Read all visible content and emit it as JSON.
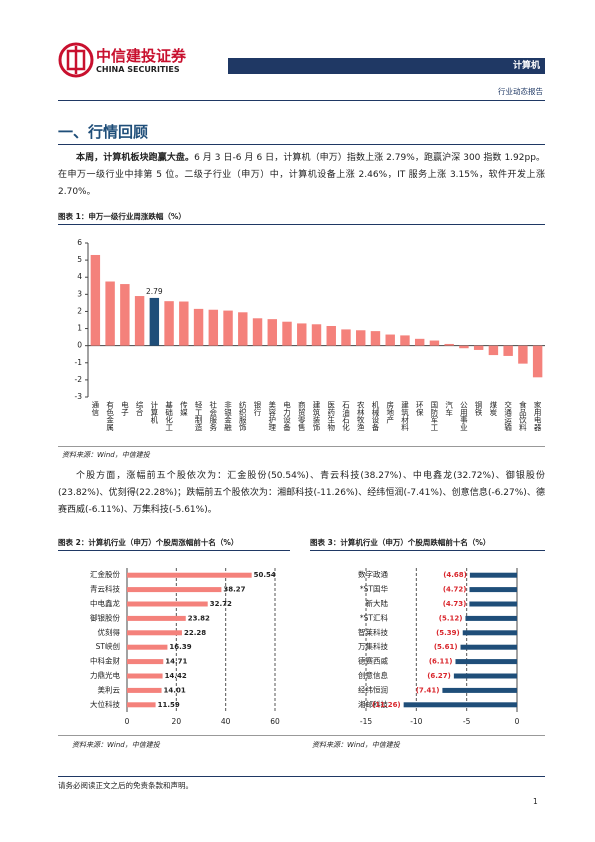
{
  "header": {
    "logo_cn": "中信建投证券",
    "logo_en": "CHINA SECURITIES",
    "sector": "计算机",
    "report_type": "行业动态报告"
  },
  "section_title": "一、行情回顾",
  "paragraphs": [
    {
      "lead": "本周，计算机板块跑赢大盘。",
      "text": "6 月 3 日-6 月 6 日，计算机（申万）指数上涨 2.79%，跑赢沪深 300 指数 1.92pp。在申万一级行业中排第 5 位。二级子行业（申万）中，计算机设备上涨 2.46%，IT 服务上涨 3.15%，软件开发上涨 2.70%。"
    },
    {
      "text": "个股方面，涨幅前五个股依次为：汇金股份(50.54%)、青云科技(38.27%)、中电鑫龙(32.72%)、御银股份(23.82%)、优刻得(22.28%)；跌幅前五个股依次为：湘邮科技(-11.26%)、经纬恒润(-7.41%)、创意信息(-6.27%)、德赛西威(-6.11%)、万集科技(-5.61%)。"
    }
  ],
  "chart_data": [
    {
      "type": "bar",
      "title": "图表 1：申万一级行业周涨跌幅（%）",
      "source": "资料来源：Wind，中信建投",
      "categories": [
        "通信",
        "有色金属",
        "电子",
        "综合",
        "计算机",
        "基础化工",
        "传媒",
        "轻工制造",
        "社会服务",
        "非银金融",
        "纺织服饰",
        "银行",
        "美容护理",
        "电力设备",
        "商贸零售",
        "建筑装饰",
        "医药生物",
        "石油石化",
        "农林牧渔",
        "机械设备",
        "房地产",
        "建筑材料",
        "环保",
        "国防军工",
        "汽车",
        "公用事业",
        "钢铁",
        "煤炭",
        "交通运输",
        "食品饮料",
        "家用电器"
      ],
      "values": [
        5.3,
        3.75,
        3.6,
        2.9,
        2.79,
        2.6,
        2.58,
        2.15,
        2.1,
        2.05,
        1.95,
        1.6,
        1.55,
        1.4,
        1.3,
        1.25,
        1.15,
        0.95,
        0.9,
        0.85,
        0.65,
        0.6,
        0.4,
        0.3,
        0.1,
        -0.15,
        -0.25,
        -0.55,
        -0.6,
        -1.05,
        -1.85
      ],
      "value_labels": [
        null,
        null,
        null,
        null,
        "2.79",
        null,
        null,
        null,
        null,
        null,
        null,
        null,
        null,
        null,
        null,
        null,
        null,
        null,
        null,
        null,
        null,
        null,
        null,
        null,
        null,
        null,
        null,
        null,
        null,
        null,
        null
      ],
      "colors": [
        "#f4817b",
        "#f4817b",
        "#f4817b",
        "#f4817b",
        "#1f4e79",
        "#f4817b",
        "#f4817b",
        "#f4817b",
        "#f4817b",
        "#f4817b",
        "#f4817b",
        "#f4817b",
        "#f4817b",
        "#f4817b",
        "#f4817b",
        "#f4817b",
        "#f4817b",
        "#f4817b",
        "#f4817b",
        "#f4817b",
        "#f4817b",
        "#f4817b",
        "#f4817b",
        "#f4817b",
        "#f4817b",
        "#f4817b",
        "#f4817b",
        "#f4817b",
        "#f4817b",
        "#f4817b",
        "#f4817b"
      ],
      "ylim": [
        -3,
        6
      ],
      "yticks": [
        -3,
        -2,
        -1,
        0,
        1,
        2,
        3,
        4,
        5,
        6
      ],
      "grid": false
    },
    {
      "type": "barh",
      "title": "图表 2：计算机行业（申万）个股周涨幅前十名（%）",
      "source": "资料来源：Wind，中信建投",
      "categories": [
        "汇金股份",
        "青云科技",
        "中电鑫龙",
        "御银股份",
        "优刻得",
        "ST峡创",
        "中科金财",
        "力鼎光电",
        "美利云",
        "大位科技"
      ],
      "values": [
        50.54,
        38.27,
        32.72,
        23.82,
        22.28,
        16.39,
        14.71,
        14.42,
        14.01,
        11.59
      ],
      "color": "#f4817b",
      "label_color": "#222222",
      "xlim": [
        0,
        60
      ],
      "xticks": [
        0,
        20,
        40,
        60
      ],
      "grid": true
    },
    {
      "type": "barh",
      "title": "图表 3：计算机行业（申万）个股周跌幅前十名（%）",
      "source": "资料来源：Wind，中信建投",
      "categories": [
        "数字政通",
        "*ST国华",
        "新大陆",
        "*ST汇科",
        "智莱科技",
        "万集科技",
        "德赛西威",
        "创意信息",
        "经纬恒润",
        "湘邮科技"
      ],
      "values": [
        -4.68,
        -4.72,
        -4.73,
        -5.12,
        -5.39,
        -5.61,
        -6.11,
        -6.27,
        -7.41,
        -11.26
      ],
      "value_labels": [
        "(4.68)",
        "(4.72)",
        "(4.73)",
        "(5.12)",
        "(5.39)",
        "(5.61)",
        "(6.11)",
        "(6.27)",
        "(7.41)",
        "(11.26)"
      ],
      "color": "#1f4e79",
      "label_color": "#d9262c",
      "xlim": [
        -15,
        0
      ],
      "xticks": [
        -15,
        -10,
        -5,
        0
      ],
      "grid": true
    }
  ],
  "footer": {
    "disclaimer": "请务必阅读正文之后的免责条款和声明。",
    "page": "1"
  }
}
